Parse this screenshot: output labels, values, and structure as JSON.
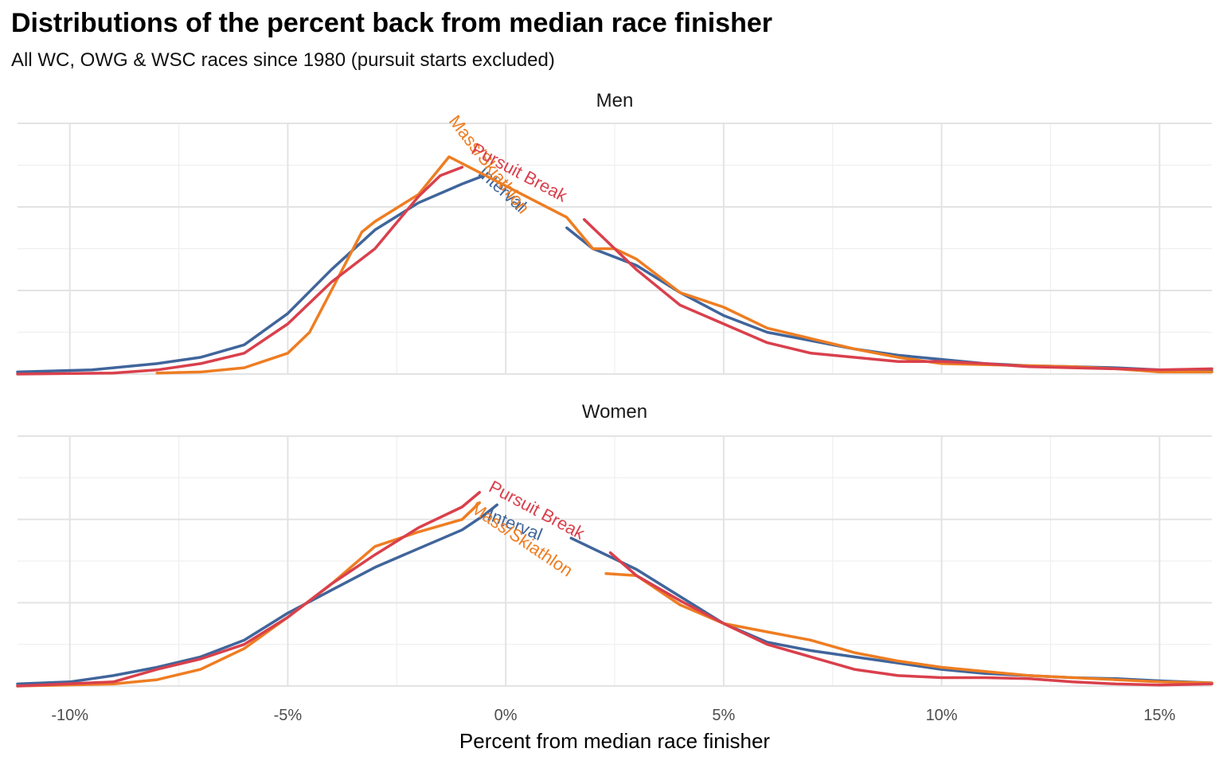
{
  "title": "Distributions of the percent back from median race finisher",
  "subtitle": "All WC, OWG & WSC races since 1980 (pursuit starts excluded)",
  "colors": {
    "Interval": "#40659b",
    "Mass/Skiathlon": "#ee7d22",
    "Pursuit Break": "#d9404c",
    "grid": "#e6e6e6"
  },
  "chart_data": [
    {
      "type": "line",
      "facet": "Men",
      "xlabel": "Percent from median race finisher",
      "ylabel": "",
      "xlim": [
        -11.2,
        16.2
      ],
      "ylim": [
        0,
        1.2
      ],
      "x_ticks": [
        -10,
        -5,
        0,
        5,
        10,
        15
      ],
      "x_tick_labels": [
        "-10%",
        "-5%",
        "0%",
        "5%",
        "10%",
        "15%"
      ],
      "y_axis_labels_shown": false,
      "grid": true,
      "series": [
        {
          "name": "Interval",
          "label": "Interval",
          "points": [
            [
              -11.2,
              0.01
            ],
            [
              -9.5,
              0.02
            ],
            [
              -8,
              0.05
            ],
            [
              -7,
              0.08
            ],
            [
              -6,
              0.14
            ],
            [
              -5,
              0.29
            ],
            [
              -4,
              0.5
            ],
            [
              -3,
              0.69
            ],
            [
              -2,
              0.82
            ],
            [
              -1,
              0.91
            ],
            [
              -0.5,
              0.95
            ],
            [
              1.4,
              0.7
            ],
            [
              2,
              0.6
            ],
            [
              3,
              0.52
            ],
            [
              4,
              0.39
            ],
            [
              5,
              0.28
            ],
            [
              6,
              0.2
            ],
            [
              7,
              0.16
            ],
            [
              8,
              0.12
            ],
            [
              9,
              0.09
            ],
            [
              10,
              0.07
            ],
            [
              11,
              0.05
            ],
            [
              12,
              0.04
            ],
            [
              13,
              0.035
            ],
            [
              14,
              0.03
            ],
            [
              15,
              0.02
            ],
            [
              16.2,
              0.015
            ]
          ]
        },
        {
          "name": "Mass/Skiathlon",
          "label": "Mass/Skiathlon",
          "points": [
            [
              -11.2,
              0.0
            ],
            [
              -8,
              0.005
            ],
            [
              -7,
              0.01
            ],
            [
              -6,
              0.03
            ],
            [
              -5,
              0.1
            ],
            [
              -4.5,
              0.2
            ],
            [
              -4,
              0.4
            ],
            [
              -3.3,
              0.68
            ],
            [
              -3,
              0.73
            ],
            [
              -2,
              0.86
            ],
            [
              -1.3,
              1.04
            ],
            [
              1.4,
              0.75
            ],
            [
              2,
              0.6
            ],
            [
              2.5,
              0.6
            ],
            [
              3,
              0.55
            ],
            [
              4,
              0.39
            ],
            [
              5,
              0.32
            ],
            [
              6,
              0.22
            ],
            [
              7,
              0.17
            ],
            [
              8,
              0.12
            ],
            [
              9,
              0.08
            ],
            [
              10,
              0.05
            ],
            [
              11,
              0.045
            ],
            [
              12,
              0.04
            ],
            [
              13,
              0.035
            ],
            [
              14,
              0.025
            ],
            [
              15,
              0.01
            ],
            [
              16.2,
              0.01
            ]
          ]
        },
        {
          "name": "Pursuit Break",
          "label": "Pursuit Break",
          "points": [
            [
              -11.2,
              0.0
            ],
            [
              -9,
              0.005
            ],
            [
              -8,
              0.02
            ],
            [
              -7,
              0.05
            ],
            [
              -6,
              0.1
            ],
            [
              -5,
              0.24
            ],
            [
              -4,
              0.44
            ],
            [
              -3,
              0.6
            ],
            [
              -2,
              0.85
            ],
            [
              -1.5,
              0.95
            ],
            [
              -1,
              0.99
            ],
            [
              1.8,
              0.74
            ],
            [
              2.5,
              0.6
            ],
            [
              3,
              0.5
            ],
            [
              4,
              0.33
            ],
            [
              5,
              0.24
            ],
            [
              6,
              0.15
            ],
            [
              7,
              0.1
            ],
            [
              8,
              0.08
            ],
            [
              9,
              0.06
            ],
            [
              10,
              0.06
            ],
            [
              11,
              0.05
            ],
            [
              12,
              0.035
            ],
            [
              13,
              0.03
            ],
            [
              14,
              0.025
            ],
            [
              15,
              0.02
            ],
            [
              16.2,
              0.025
            ]
          ]
        }
      ]
    },
    {
      "type": "line",
      "facet": "Women",
      "xlabel": "Percent from median race finisher",
      "ylabel": "",
      "xlim": [
        -11.2,
        16.2
      ],
      "ylim": [
        0,
        1.2
      ],
      "x_ticks": [
        -10,
        -5,
        0,
        5,
        10,
        15
      ],
      "x_tick_labels": [
        "-10%",
        "-5%",
        "0%",
        "5%",
        "10%",
        "15%"
      ],
      "y_axis_labels_shown": false,
      "grid": true,
      "series": [
        {
          "name": "Interval",
          "label": "Interval",
          "points": [
            [
              -11.2,
              0.01
            ],
            [
              -10,
              0.02
            ],
            [
              -9,
              0.05
            ],
            [
              -8,
              0.09
            ],
            [
              -7,
              0.14
            ],
            [
              -6,
              0.22
            ],
            [
              -5,
              0.35
            ],
            [
              -4,
              0.46
            ],
            [
              -3,
              0.57
            ],
            [
              -2,
              0.66
            ],
            [
              -1,
              0.75
            ],
            [
              -0.5,
              0.82
            ],
            [
              -0.2,
              0.87
            ],
            [
              1.5,
              0.71
            ],
            [
              2,
              0.66
            ],
            [
              3,
              0.56
            ],
            [
              4,
              0.43
            ],
            [
              5,
              0.3
            ],
            [
              6,
              0.21
            ],
            [
              7,
              0.17
            ],
            [
              8,
              0.14
            ],
            [
              9,
              0.11
            ],
            [
              10,
              0.08
            ],
            [
              11,
              0.06
            ],
            [
              12,
              0.05
            ],
            [
              13,
              0.04
            ],
            [
              14,
              0.035
            ],
            [
              15,
              0.025
            ],
            [
              16.2,
              0.015
            ]
          ]
        },
        {
          "name": "Mass/Skiathlon",
          "label": "Mass/Skiathlon",
          "points": [
            [
              -11.2,
              0.0
            ],
            [
              -9,
              0.01
            ],
            [
              -8,
              0.03
            ],
            [
              -7,
              0.08
            ],
            [
              -6,
              0.18
            ],
            [
              -5,
              0.33
            ],
            [
              -4,
              0.49
            ],
            [
              -3,
              0.67
            ],
            [
              -2,
              0.74
            ],
            [
              -1,
              0.8
            ],
            [
              -0.6,
              0.88
            ],
            [
              2.3,
              0.54
            ],
            [
              3,
              0.53
            ],
            [
              4,
              0.39
            ],
            [
              5,
              0.3
            ],
            [
              6,
              0.26
            ],
            [
              7,
              0.22
            ],
            [
              8,
              0.16
            ],
            [
              9,
              0.12
            ],
            [
              10,
              0.09
            ],
            [
              11,
              0.07
            ],
            [
              12,
              0.05
            ],
            [
              13,
              0.04
            ],
            [
              14,
              0.03
            ],
            [
              15,
              0.02
            ],
            [
              16.2,
              0.015
            ]
          ]
        },
        {
          "name": "Pursuit Break",
          "label": "Pursuit Break",
          "points": [
            [
              -11.2,
              0.0
            ],
            [
              -9,
              0.02
            ],
            [
              -8,
              0.08
            ],
            [
              -7,
              0.13
            ],
            [
              -6,
              0.2
            ],
            [
              -5,
              0.33
            ],
            [
              -4,
              0.49
            ],
            [
              -3,
              0.63
            ],
            [
              -2,
              0.76
            ],
            [
              -1,
              0.86
            ],
            [
              -0.6,
              0.93
            ],
            [
              2.4,
              0.64
            ],
            [
              3,
              0.53
            ],
            [
              4,
              0.41
            ],
            [
              5,
              0.3
            ],
            [
              6,
              0.2
            ],
            [
              7,
              0.14
            ],
            [
              8,
              0.08
            ],
            [
              9,
              0.05
            ],
            [
              10,
              0.04
            ],
            [
              11,
              0.04
            ],
            [
              12,
              0.035
            ],
            [
              13,
              0.02
            ],
            [
              14,
              0.01
            ],
            [
              15,
              0.005
            ],
            [
              16.2,
              0.01
            ]
          ]
        }
      ]
    }
  ]
}
